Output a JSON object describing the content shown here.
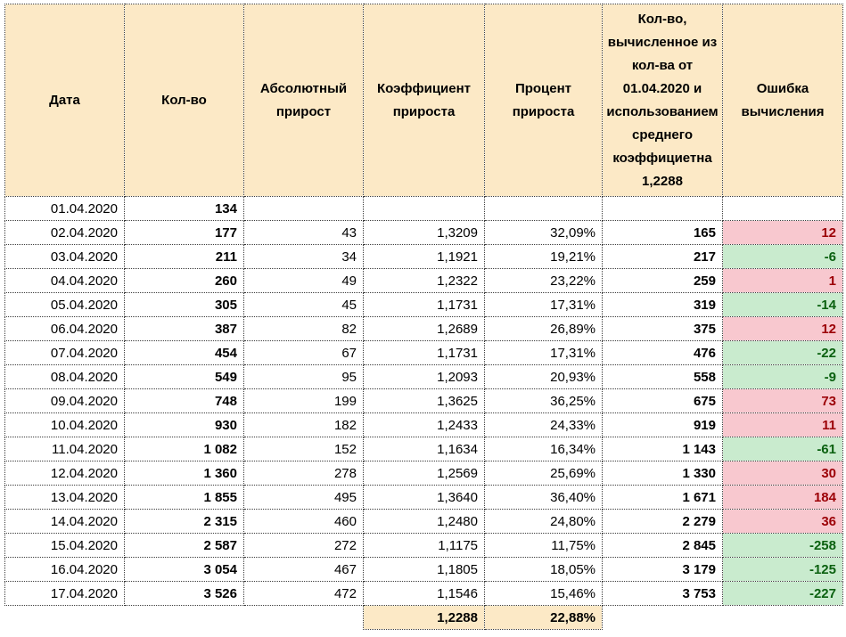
{
  "colors": {
    "header_bg": "#FCE9C6",
    "bad_bg": "#F8C8CF",
    "bad_text": "#9C0006",
    "good_bg": "#C9EBCE",
    "good_text": "#0B6110"
  },
  "table": {
    "columns": [
      {
        "label": "Дата"
      },
      {
        "label": "Кол-во"
      },
      {
        "label": "Абсолютный прирост"
      },
      {
        "label": "Коэффициент прироста"
      },
      {
        "label": "Процент прироста"
      },
      {
        "label": "Кол-во, вычисленное из кол-ва от 01.04.2020 и использованием среднего коэффициетна 1,2288"
      },
      {
        "label": "Ошибка вычисления"
      }
    ],
    "rows": [
      {
        "date": "01.04.2020",
        "count": "134",
        "abs_growth": "",
        "growth_coef": "",
        "growth_pct": "",
        "calc_count": "",
        "error": "",
        "error_type": "none"
      },
      {
        "date": "02.04.2020",
        "count": "177",
        "abs_growth": "43",
        "growth_coef": "1,3209",
        "growth_pct": "32,09%",
        "calc_count": "165",
        "error": "12",
        "error_type": "bad"
      },
      {
        "date": "03.04.2020",
        "count": "211",
        "abs_growth": "34",
        "growth_coef": "1,1921",
        "growth_pct": "19,21%",
        "calc_count": "217",
        "error": "-6",
        "error_type": "good"
      },
      {
        "date": "04.04.2020",
        "count": "260",
        "abs_growth": "49",
        "growth_coef": "1,2322",
        "growth_pct": "23,22%",
        "calc_count": "259",
        "error": "1",
        "error_type": "bad"
      },
      {
        "date": "05.04.2020",
        "count": "305",
        "abs_growth": "45",
        "growth_coef": "1,1731",
        "growth_pct": "17,31%",
        "calc_count": "319",
        "error": "-14",
        "error_type": "good"
      },
      {
        "date": "06.04.2020",
        "count": "387",
        "abs_growth": "82",
        "growth_coef": "1,2689",
        "growth_pct": "26,89%",
        "calc_count": "375",
        "error": "12",
        "error_type": "bad"
      },
      {
        "date": "07.04.2020",
        "count": "454",
        "abs_growth": "67",
        "growth_coef": "1,1731",
        "growth_pct": "17,31%",
        "calc_count": "476",
        "error": "-22",
        "error_type": "good"
      },
      {
        "date": "08.04.2020",
        "count": "549",
        "abs_growth": "95",
        "growth_coef": "1,2093",
        "growth_pct": "20,93%",
        "calc_count": "558",
        "error": "-9",
        "error_type": "good"
      },
      {
        "date": "09.04.2020",
        "count": "748",
        "abs_growth": "199",
        "growth_coef": "1,3625",
        "growth_pct": "36,25%",
        "calc_count": "675",
        "error": "73",
        "error_type": "bad"
      },
      {
        "date": "10.04.2020",
        "count": "930",
        "abs_growth": "182",
        "growth_coef": "1,2433",
        "growth_pct": "24,33%",
        "calc_count": "919",
        "error": "11",
        "error_type": "bad"
      },
      {
        "date": "11.04.2020",
        "count": "1 082",
        "abs_growth": "152",
        "growth_coef": "1,1634",
        "growth_pct": "16,34%",
        "calc_count": "1 143",
        "error": "-61",
        "error_type": "good"
      },
      {
        "date": "12.04.2020",
        "count": "1 360",
        "abs_growth": "278",
        "growth_coef": "1,2569",
        "growth_pct": "25,69%",
        "calc_count": "1 330",
        "error": "30",
        "error_type": "bad"
      },
      {
        "date": "13.04.2020",
        "count": "1 855",
        "abs_growth": "495",
        "growth_coef": "1,3640",
        "growth_pct": "36,40%",
        "calc_count": "1 671",
        "error": "184",
        "error_type": "bad"
      },
      {
        "date": "14.04.2020",
        "count": "2 315",
        "abs_growth": "460",
        "growth_coef": "1,2480",
        "growth_pct": "24,80%",
        "calc_count": "2 279",
        "error": "36",
        "error_type": "bad"
      },
      {
        "date": "15.04.2020",
        "count": "2 587",
        "abs_growth": "272",
        "growth_coef": "1,1175",
        "growth_pct": "11,75%",
        "calc_count": "2 845",
        "error": "-258",
        "error_type": "good"
      },
      {
        "date": "16.04.2020",
        "count": "3 054",
        "abs_growth": "467",
        "growth_coef": "1,1805",
        "growth_pct": "18,05%",
        "calc_count": "3 179",
        "error": "-125",
        "error_type": "good"
      },
      {
        "date": "17.04.2020",
        "count": "3 526",
        "abs_growth": "472",
        "growth_coef": "1,1546",
        "growth_pct": "15,46%",
        "calc_count": "3 753",
        "error": "-227",
        "error_type": "good"
      }
    ],
    "footer": {
      "avg_coef": "1,2288",
      "avg_pct": "22,88%"
    }
  }
}
